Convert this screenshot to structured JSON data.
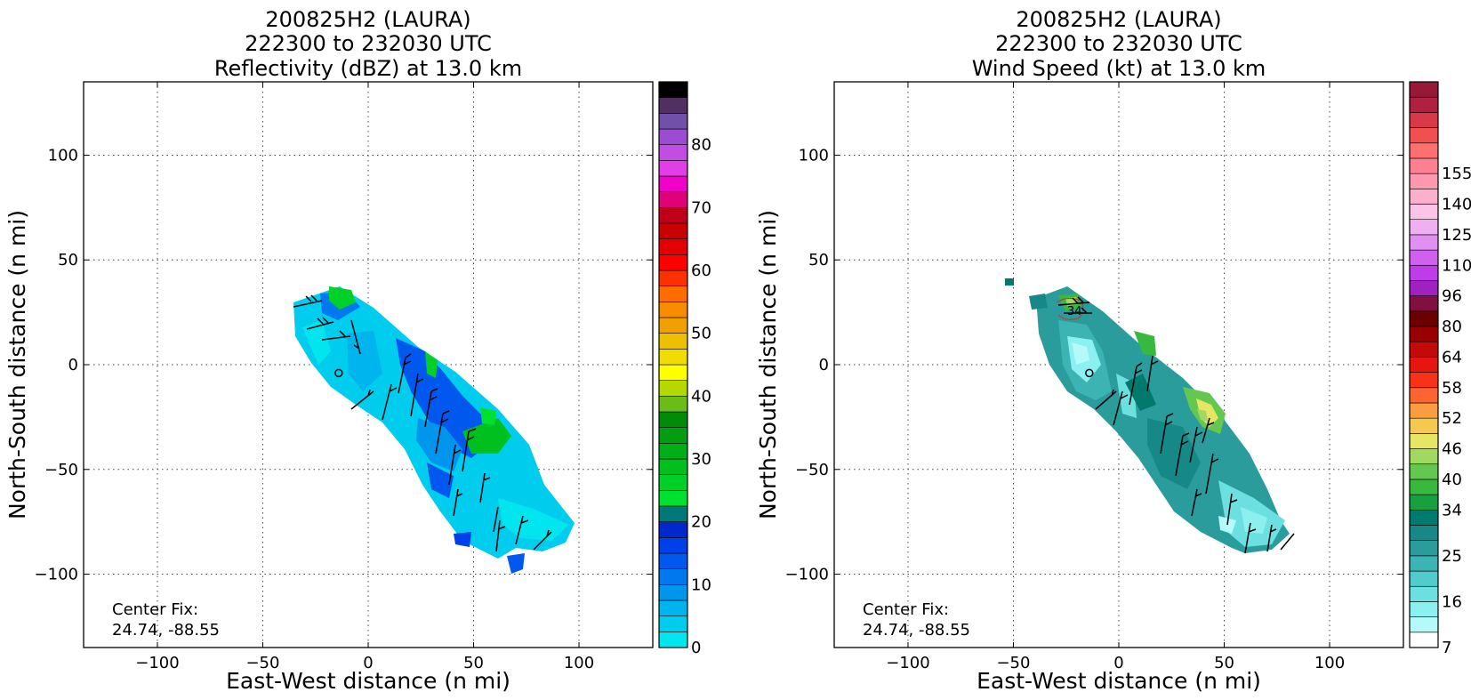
{
  "chart_data": [
    {
      "type": "heatmap",
      "title": [
        "200825H2 (LAURA)",
        "222300 to 232030 UTC",
        "Reflectivity (dBZ) at 13.0 km"
      ],
      "xlabel": "East-West distance (n mi)",
      "ylabel": "North-South distance (n mi)",
      "xlim": [
        -135,
        135
      ],
      "ylim": [
        -135,
        135
      ],
      "xticks": [
        -100,
        -50,
        0,
        50,
        100
      ],
      "yticks": [
        -100,
        -50,
        0,
        50,
        100
      ],
      "xtick_labels": [
        "−100",
        "−50",
        "0",
        "50",
        "100"
      ],
      "ytick_labels": [
        "−100",
        "−50",
        "0",
        "50",
        "100"
      ],
      "grid": true,
      "annotation": [
        "Center Fix:",
        "24.74, -88.55"
      ],
      "colorbar": {
        "levels": [
          0,
          2.5,
          5,
          7.5,
          10,
          12.5,
          15,
          17.5,
          20,
          22.5,
          25,
          27.5,
          30,
          32.5,
          35,
          37.5,
          40,
          42.5,
          45,
          47.5,
          50,
          52.5,
          55,
          57.5,
          60,
          62.5,
          65,
          67.5,
          70,
          72.5,
          75,
          77.5,
          80
        ],
        "colors": [
          "#00e5ee",
          "#00ccee",
          "#00b4ee",
          "#0096ee",
          "#0078ee",
          "#0058ee",
          "#0040ea",
          "#0028cc",
          "#007878",
          "#00e030",
          "#00d028",
          "#00c020",
          "#00ae18",
          "#009e10",
          "#008c08",
          "#6cbc18",
          "#b4d800",
          "#ffff00",
          "#f0dc00",
          "#ecc000",
          "#f0a000",
          "#f88c00",
          "#ff6c00",
          "#ff3000",
          "#ff0000",
          "#e40000",
          "#c80000",
          "#c00018",
          "#e00078",
          "#f000c8",
          "#e23ee6",
          "#c04ee0",
          "#9c4cd0",
          "#7050a8",
          "#503060",
          "#000000"
        ],
        "tick_values": [
          0,
          10,
          20,
          30,
          40,
          50,
          60,
          70,
          80
        ],
        "tick_labels": [
          "0",
          "10",
          "20",
          "30",
          "40",
          "50",
          "60",
          "70",
          "80"
        ]
      },
      "center_marker": [
        -14,
        -4
      ]
    },
    {
      "type": "heatmap",
      "title": [
        "200825H2 (LAURA)",
        "222300 to 232030 UTC",
        "Wind Speed (kt) at 13.0 km"
      ],
      "xlabel": "East-West distance (n mi)",
      "ylabel": "North-South distance (n mi)",
      "xlim": [
        -135,
        135
      ],
      "ylim": [
        -135,
        135
      ],
      "xticks": [
        -100,
        -50,
        0,
        50,
        100
      ],
      "yticks": [
        -100,
        -50,
        0,
        50,
        100
      ],
      "xtick_labels": [
        "−100",
        "−50",
        "0",
        "50",
        "100"
      ],
      "ytick_labels": [
        "−100",
        "−50",
        "0",
        "50",
        "100"
      ],
      "grid": true,
      "annotation": [
        "Center Fix:",
        "24.74, -88.55"
      ],
      "contour_label": "34",
      "colorbar": {
        "levels": [
          7,
          10,
          13,
          16,
          19,
          22,
          25,
          28,
          31,
          34,
          37,
          40,
          43,
          46,
          49,
          52,
          55,
          58,
          61,
          64,
          72,
          80,
          88,
          96,
          103,
          110,
          118,
          125,
          133,
          140,
          148,
          155,
          163
        ],
        "colors": [
          "#ffffff",
          "#b4fafa",
          "#8cf0f0",
          "#6ce0e0",
          "#50cccc",
          "#3cb4b4",
          "#2a9c9c",
          "#168888",
          "#007a6c",
          "#18a040",
          "#38b83c",
          "#64c850",
          "#a0d860",
          "#e4e664",
          "#f6c850",
          "#fc9c40",
          "#fc6432",
          "#f83218",
          "#e81410",
          "#c40a08",
          "#9a0000",
          "#6a0000",
          "#801040",
          "#a020c0",
          "#c03ce8",
          "#d060f0",
          "#e090f0",
          "#f0b0f0",
          "#fcc4e8",
          "#fcb0cc",
          "#fc98b0",
          "#fc8090",
          "#fc7070",
          "#f05050",
          "#d83848",
          "#b02040",
          "#981838"
        ],
        "tick_values": [
          7,
          16,
          25,
          34,
          40,
          46,
          52,
          58,
          64,
          80,
          96,
          110,
          125,
          140,
          155
        ],
        "tick_labels": [
          "7",
          "16",
          "25",
          "34",
          "40",
          "46",
          "52",
          "58",
          "64",
          "80",
          "96",
          "110",
          "125",
          "140",
          "155"
        ]
      },
      "center_marker": [
        -14,
        -4
      ]
    }
  ]
}
